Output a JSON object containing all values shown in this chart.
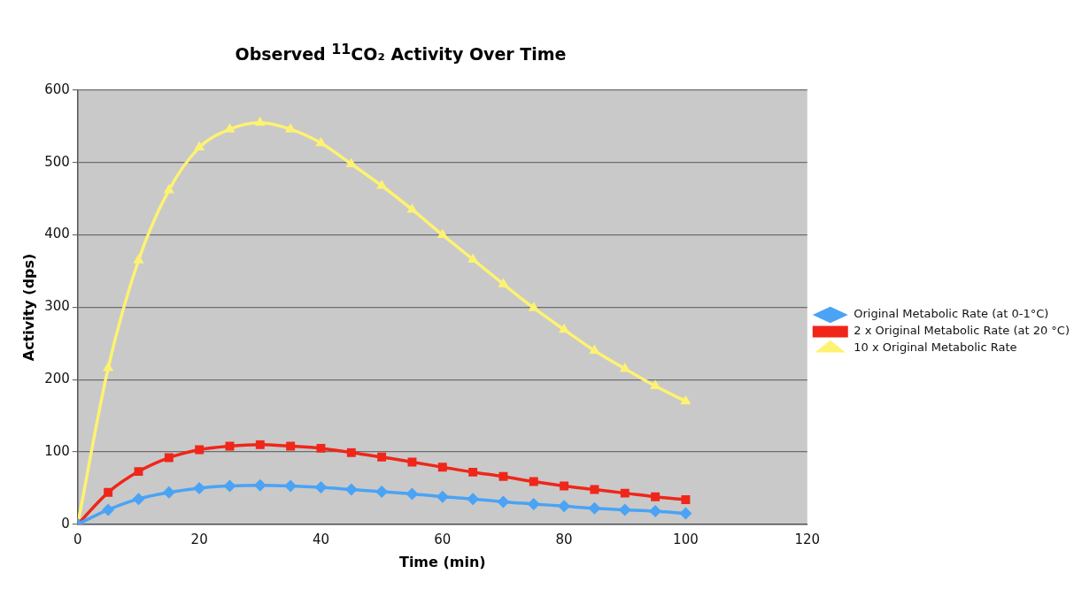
{
  "chart_data": {
    "type": "line",
    "title": "Observed $^{11}$CO₂ Activity Over Time",
    "xlabel": "Time (min)",
    "ylabel": "Activity (dps)",
    "x": [
      0,
      5,
      10,
      15,
      20,
      25,
      30,
      35,
      40,
      45,
      50,
      55,
      60,
      65,
      70,
      75,
      80,
      85,
      90,
      95,
      100
    ],
    "series": [
      {
        "name": "Original Metabolic Rate (at 0-1°C)",
        "color": "#4aa3f5",
        "marker": "diamond",
        "values": [
          0,
          20,
          35,
          44,
          50,
          53,
          54,
          53,
          51,
          48,
          45,
          42,
          38,
          35,
          31,
          28,
          25,
          22,
          20,
          18,
          15
        ]
      },
      {
        "name": "2 x Original Metabolic Rate (at 20 °C)",
        "color": "#f0261a",
        "marker": "square",
        "values": [
          0,
          44,
          73,
          92,
          103,
          108,
          110,
          108,
          105,
          99,
          93,
          86,
          79,
          72,
          66,
          59,
          53,
          48,
          43,
          38,
          34
        ]
      },
      {
        "name": "10 x Original Metabolic Rate",
        "color": "#fdf272",
        "marker": "triangle",
        "values": [
          0,
          216,
          365,
          462,
          521,
          546,
          555,
          546,
          527,
          498,
          468,
          435,
          400,
          366,
          332,
          299,
          269,
          240,
          215,
          191,
          170
        ]
      }
    ],
    "xlim": [
      0,
      120
    ],
    "xticks": [
      0,
      20,
      40,
      60,
      80,
      100,
      120
    ],
    "ylim": [
      0,
      600
    ],
    "yticks": [
      0,
      100,
      200,
      300,
      400,
      500,
      600
    ],
    "grid": "y",
    "legend": "right",
    "line_style": "solid"
  }
}
